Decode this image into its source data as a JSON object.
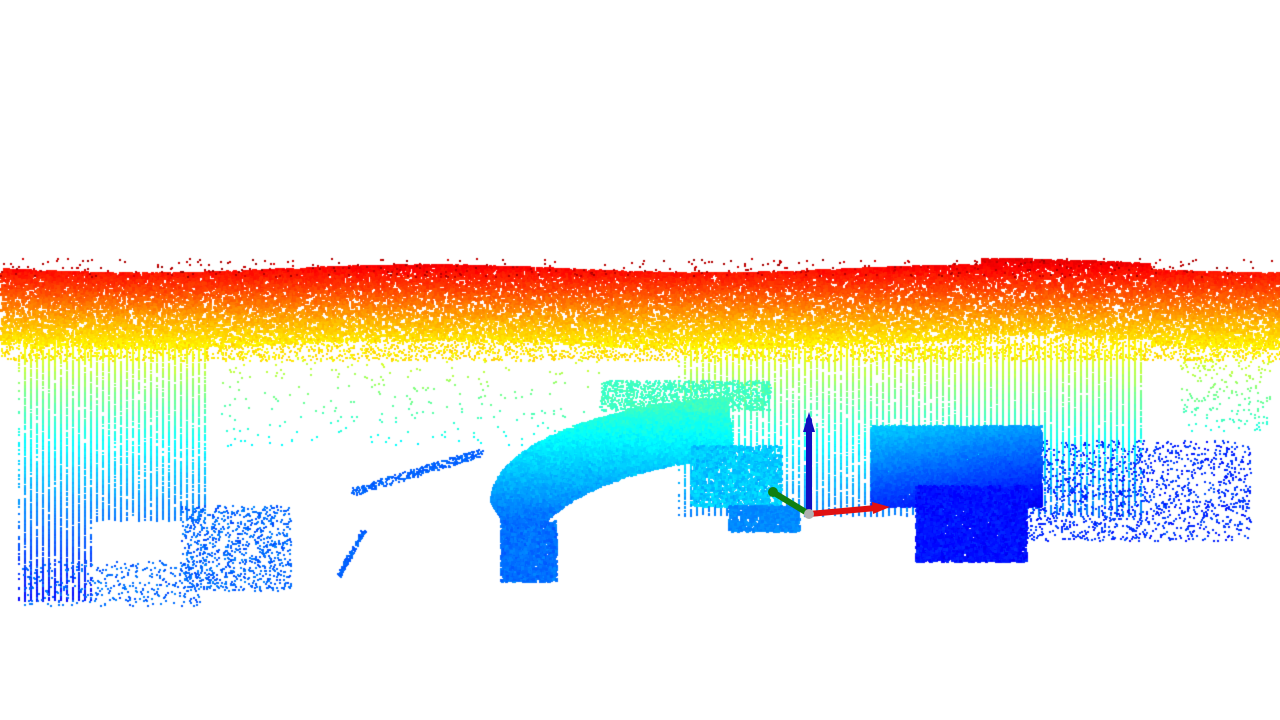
{
  "viewer": {
    "background_color": "#ffffff",
    "render_mode": "point-cloud",
    "point_size": 3
  },
  "point_cloud": {
    "colormap": "jet",
    "color_by": "height",
    "colormap_stops": [
      "#000080",
      "#0000ff",
      "#0080ff",
      "#00ffff",
      "#80ff80",
      "#ffff00",
      "#ff8000",
      "#ff0000",
      "#800000"
    ]
  },
  "coordinate_frame": {
    "origin_color": "#b0b0b0",
    "axes": [
      {
        "name": "x",
        "color": "#e01010"
      },
      {
        "name": "y",
        "color": "#108010"
      },
      {
        "name": "z",
        "color": "#1010c0"
      }
    ]
  }
}
